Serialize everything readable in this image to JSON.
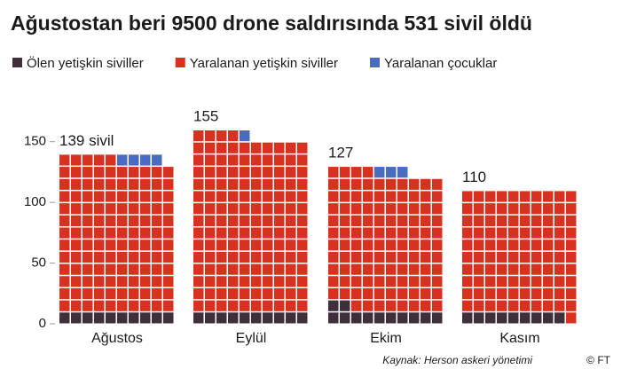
{
  "chart_data": {
    "type": "waffle",
    "title": "Ağustostan beri 9500 drone saldırısında 531 sivil öldü",
    "categories": [
      "Ağustos",
      "Eylül",
      "Ekim",
      "Kasım"
    ],
    "series": [
      {
        "name": "Ölen yetişkin siviller",
        "color": "#3f2f3a",
        "values": [
          10,
          10,
          12,
          9
        ]
      },
      {
        "name": "Yaralanan yetişkin siviller",
        "color": "#d8311f",
        "values": [
          125,
          144,
          112,
          101
        ]
      },
      {
        "name": "Yaralanan çocuklar",
        "color": "#4a6cc0",
        "values": [
          4,
          1,
          3,
          0
        ]
      }
    ],
    "totals": [
      139,
      155,
      127,
      110
    ],
    "total_labels": [
      "139 sivil",
      "155",
      "127",
      "110"
    ],
    "ylim": [
      0,
      160
    ],
    "yticks": [
      0,
      50,
      100,
      150
    ],
    "source": "Kaynak: Herson askeri yönetimi",
    "credit": "© FT"
  }
}
